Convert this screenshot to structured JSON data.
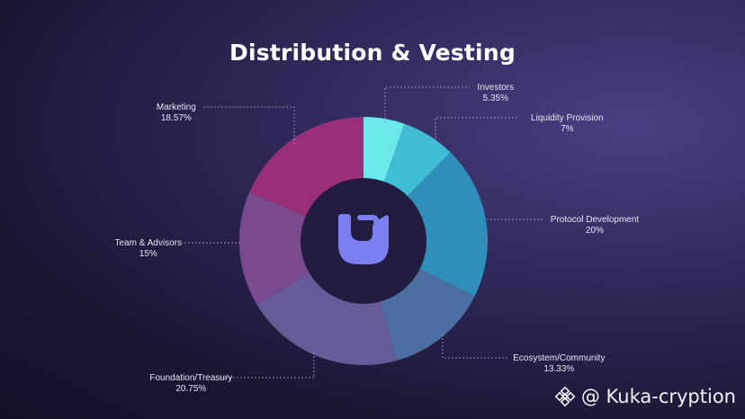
{
  "chart_data": {
    "type": "pie",
    "title": "Distribution & Vesting",
    "slices": [
      {
        "label": "Investors",
        "value": 5.35,
        "display": "5.35%",
        "color": "#6ae8ea"
      },
      {
        "label": "Liquidity Provision",
        "value": 7,
        "display": "7%",
        "color": "#41bcd5"
      },
      {
        "label": "Protocol Development",
        "value": 20,
        "display": "20%",
        "color": "#2f8fba"
      },
      {
        "label": "Ecosystem/Community",
        "value": 13.33,
        "display": "13.33%",
        "color": "#4b6ea3"
      },
      {
        "label": "Foundation/Treasury",
        "value": 20.75,
        "display": "20.75%",
        "color": "#655b96"
      },
      {
        "label": "Team & Advisors",
        "value": 15,
        "display": "15%",
        "color": "#7a4a8f"
      },
      {
        "label": "Marketing",
        "value": 18.57,
        "display": "18.57%",
        "color": "#982f78"
      }
    ]
  },
  "center_logo": {
    "icon": "u-shaped-logo-icon",
    "color": "#7b7ff2"
  },
  "watermark": {
    "icon": "binance-diamond-icon",
    "text": "@ Kuka-cryption"
  }
}
